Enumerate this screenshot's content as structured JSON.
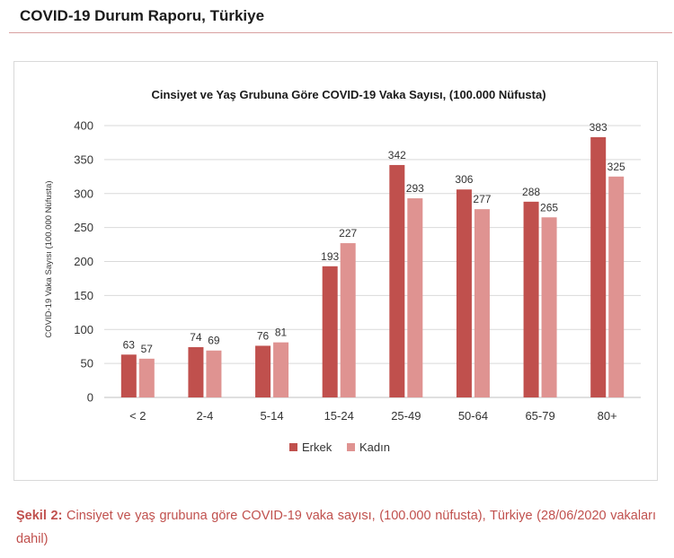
{
  "header": {
    "title": "COVID-19 Durum Raporu, Türkiye"
  },
  "colors": {
    "erkek": "#c0504d",
    "kadin": "#df9391",
    "rule": "#d9a0a0",
    "caption": "#c0504d"
  },
  "chart_data": {
    "type": "bar",
    "title": "Cinsiyet ve Yaş Grubuna Göre COVID-19 Vaka Sayısı, (100.000 Nüfusta)",
    "xlabel": "",
    "ylabel": "COVID-19 Vaka Sayısı (100.000 Nüfusta)",
    "ylim": [
      0,
      400
    ],
    "yticks": [
      0,
      50,
      100,
      150,
      200,
      250,
      300,
      350,
      400
    ],
    "grid": "horizontal",
    "legend_position": "bottom",
    "categories": [
      "< 2",
      "2-4",
      "5-14",
      "15-24",
      "25-49",
      "50-64",
      "65-79",
      "80+"
    ],
    "series": [
      {
        "name": "Erkek",
        "color": "#c0504d",
        "values": [
          63,
          74,
          76,
          193,
          342,
          306,
          288,
          383
        ]
      },
      {
        "name": "Kadın",
        "color": "#df9391",
        "values": [
          57,
          69,
          81,
          227,
          293,
          277,
          265,
          325
        ]
      }
    ]
  },
  "caption": {
    "label": "Şekil 2:",
    "text": " Cinsiyet ve yaş grubuna göre COVID-19 vaka sayısı, (100.000 nüfusta), Türkiye (28/06/2020 vakaları dahil)"
  }
}
